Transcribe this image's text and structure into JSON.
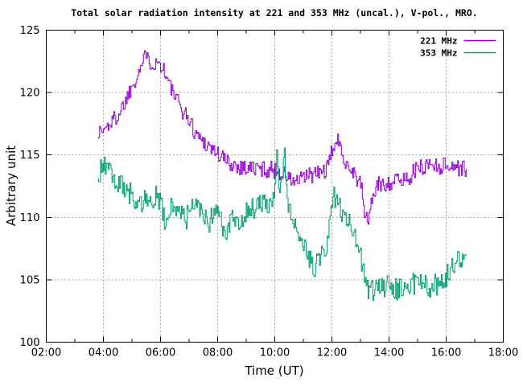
{
  "chart_data": {
    "type": "line",
    "title": "Total solar radiation intensity at 221 and 353 MHz (uncal.), V-pol., MRO.",
    "xlabel": "Time (UT)",
    "ylabel": "Arbitrary unit",
    "xlim": [
      2,
      18
    ],
    "ylim": [
      100,
      125
    ],
    "x_major_ticks": [
      2,
      4,
      6,
      8,
      10,
      12,
      14,
      16,
      18
    ],
    "x_tick_labels": [
      "02:00",
      "04:00",
      "06:00",
      "08:00",
      "10:00",
      "12:00",
      "14:00",
      "16:00",
      "18:00"
    ],
    "x_minor_ticks": [
      3,
      5,
      7,
      9,
      11,
      13,
      15,
      17
    ],
    "y_major_ticks": [
      100,
      105,
      110,
      115,
      120,
      125
    ],
    "y_tick_labels": [
      "100",
      "105",
      "110",
      "115",
      "120",
      "125"
    ],
    "grid": true,
    "legend_position": "top-right-inside",
    "axis_color": "#000000",
    "grid_color": "#a8a8a8",
    "data_time_range_ut": [
      "03:48",
      "16:44"
    ],
    "series": [
      {
        "name": "221 MHz",
        "color": "#9400d3",
        "noise_amplitude": 0.7,
        "sample_minutes": 2,
        "trend": [
          [
            3.8,
            116.8
          ],
          [
            4.0,
            117.0
          ],
          [
            4.25,
            117.6
          ],
          [
            4.5,
            118.2
          ],
          [
            4.75,
            119.3
          ],
          [
            5.0,
            120.6
          ],
          [
            5.2,
            121.6
          ],
          [
            5.45,
            122.8
          ],
          [
            5.53,
            123.7
          ],
          [
            5.65,
            122.2
          ],
          [
            5.85,
            122.4
          ],
          [
            6.05,
            122.2
          ],
          [
            6.25,
            120.9
          ],
          [
            6.5,
            119.6
          ],
          [
            6.75,
            118.6
          ],
          [
            7.0,
            117.8
          ],
          [
            7.2,
            116.8
          ],
          [
            7.45,
            116.2
          ],
          [
            7.75,
            115.6
          ],
          [
            8.05,
            115.0
          ],
          [
            8.35,
            114.4
          ],
          [
            8.7,
            114.1
          ],
          [
            9.0,
            114.0
          ],
          [
            9.4,
            113.9
          ],
          [
            10.0,
            113.8
          ],
          [
            10.35,
            113.4
          ],
          [
            10.6,
            112.9
          ],
          [
            10.85,
            112.9
          ],
          [
            11.1,
            113.3
          ],
          [
            11.5,
            113.5
          ],
          [
            11.85,
            113.9
          ],
          [
            12.05,
            115.9
          ],
          [
            12.2,
            116.0
          ],
          [
            12.3,
            115.5
          ],
          [
            12.5,
            114.4
          ],
          [
            12.75,
            113.6
          ],
          [
            13.0,
            112.6
          ],
          [
            13.15,
            110.2
          ],
          [
            13.25,
            109.6
          ],
          [
            13.4,
            111.5
          ],
          [
            13.55,
            112.5
          ],
          [
            13.8,
            112.7
          ],
          [
            14.2,
            112.9
          ],
          [
            14.6,
            113.1
          ],
          [
            15.0,
            113.9
          ],
          [
            15.4,
            114.3
          ],
          [
            15.8,
            114.1
          ],
          [
            16.1,
            114.2
          ],
          [
            16.45,
            114.0
          ],
          [
            16.73,
            113.8
          ]
        ]
      },
      {
        "name": "353 MHz",
        "color": "#009e73",
        "noise_amplitude": 0.9,
        "sample_minutes": 2,
        "trend": [
          [
            3.8,
            113.0
          ],
          [
            3.95,
            114.2
          ],
          [
            4.15,
            113.8
          ],
          [
            4.35,
            112.9
          ],
          [
            4.6,
            112.5
          ],
          [
            4.85,
            112.0
          ],
          [
            5.05,
            111.8
          ],
          [
            5.25,
            110.8
          ],
          [
            5.4,
            111.6
          ],
          [
            5.6,
            111.2
          ],
          [
            5.8,
            111.7
          ],
          [
            6.0,
            111.3
          ],
          [
            6.2,
            109.0
          ],
          [
            6.35,
            111.2
          ],
          [
            6.55,
            111.0
          ],
          [
            6.75,
            110.0
          ],
          [
            6.9,
            109.9
          ],
          [
            7.1,
            110.9
          ],
          [
            7.45,
            110.6
          ],
          [
            7.7,
            109.6
          ],
          [
            7.9,
            110.9
          ],
          [
            8.3,
            108.3
          ],
          [
            8.5,
            110.4
          ],
          [
            8.75,
            109.2
          ],
          [
            9.0,
            110.4
          ],
          [
            9.35,
            110.8
          ],
          [
            9.7,
            111.1
          ],
          [
            9.95,
            111.4
          ],
          [
            10.06,
            115.2
          ],
          [
            10.18,
            111.3
          ],
          [
            10.32,
            115.7
          ],
          [
            10.45,
            110.9
          ],
          [
            10.7,
            109.6
          ],
          [
            11.0,
            108.2
          ],
          [
            11.2,
            106.8
          ],
          [
            11.4,
            105.9
          ],
          [
            11.6,
            106.8
          ],
          [
            11.8,
            108.0
          ],
          [
            11.95,
            110.3
          ],
          [
            12.05,
            112.0
          ],
          [
            12.2,
            110.8
          ],
          [
            12.4,
            110.3
          ],
          [
            12.6,
            109.4
          ],
          [
            12.8,
            108.2
          ],
          [
            13.0,
            106.8
          ],
          [
            13.2,
            104.6
          ],
          [
            13.35,
            104.0
          ],
          [
            13.55,
            104.4
          ],
          [
            13.9,
            104.5
          ],
          [
            14.25,
            104.2
          ],
          [
            14.6,
            104.6
          ],
          [
            15.0,
            104.8
          ],
          [
            15.35,
            104.4
          ],
          [
            15.7,
            104.7
          ],
          [
            16.0,
            105.2
          ],
          [
            16.2,
            106.3
          ],
          [
            16.45,
            106.7
          ],
          [
            16.73,
            106.4
          ]
        ]
      }
    ]
  }
}
